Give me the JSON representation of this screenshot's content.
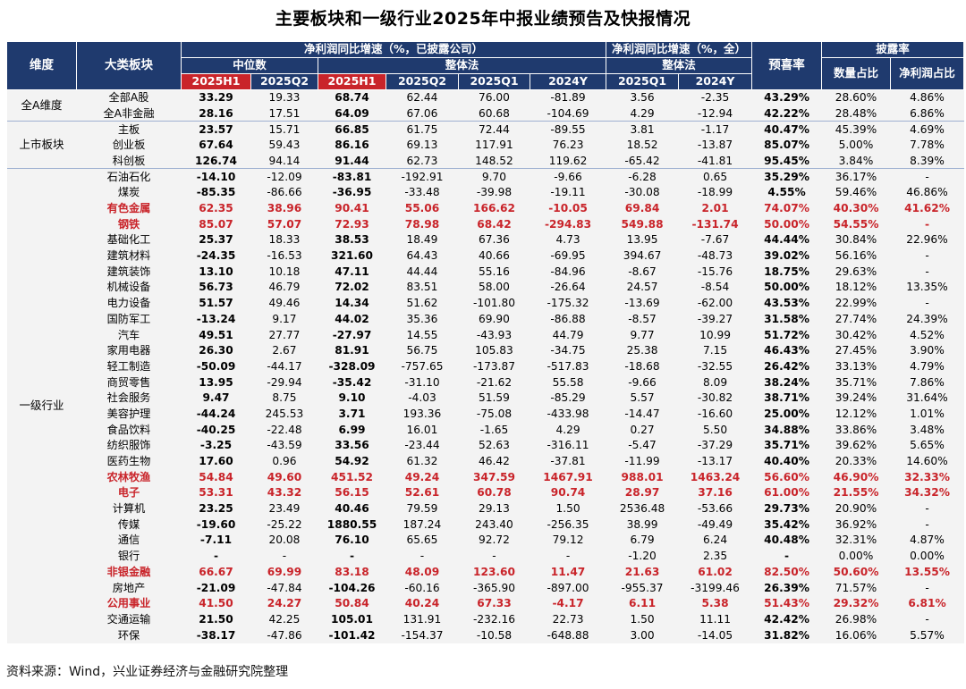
{
  "title": "主要板块和一级行业2025年中报业绩预告及快报情况",
  "source": "资料来源：Wind，兴业证券经济与金融研究院整理",
  "header": {
    "dim": "维度",
    "category": "大类板块",
    "group1": "净利润同比增速（%，已披露公司）",
    "group2": "净利润同比增速（%，全）",
    "forecast": "预喜率",
    "disclosure": "披露率",
    "median": "中位数",
    "overall1": "整体法",
    "overall2": "整体法",
    "count_ratio": "数量占比",
    "profit_ratio": "净利润占比",
    "cols": [
      "2025H1",
      "2025Q2",
      "2025H1",
      "2025Q2",
      "2025Q1",
      "2024Y",
      "2025Q1",
      "2024Y"
    ]
  },
  "groups": [
    {
      "label": "全A维度",
      "rows": [
        {
          "name": "全部A股",
          "v": [
            "33.29",
            "19.33",
            "68.74",
            "62.44",
            "76.00",
            "-81.89",
            "3.56",
            "-2.35",
            "43.29%",
            "28.60%",
            "4.86%"
          ],
          "hl": false
        },
        {
          "name": "全A非金融",
          "v": [
            "28.16",
            "17.51",
            "64.09",
            "67.06",
            "60.68",
            "-104.69",
            "4.29",
            "-12.94",
            "42.22%",
            "28.48%",
            "6.86%"
          ],
          "hl": false
        }
      ]
    },
    {
      "label": "上市板块",
      "rows": [
        {
          "name": "主板",
          "v": [
            "23.57",
            "15.71",
            "66.85",
            "61.75",
            "72.44",
            "-89.55",
            "3.81",
            "-1.17",
            "40.47%",
            "45.39%",
            "4.69%"
          ],
          "hl": false
        },
        {
          "name": "创业板",
          "v": [
            "67.64",
            "59.43",
            "86.16",
            "69.13",
            "117.91",
            "76.23",
            "18.52",
            "-13.87",
            "85.07%",
            "5.00%",
            "7.78%"
          ],
          "hl": false
        },
        {
          "name": "科创板",
          "v": [
            "126.74",
            "94.14",
            "91.44",
            "62.73",
            "148.52",
            "119.62",
            "-65.42",
            "-41.81",
            "95.45%",
            "3.84%",
            "8.39%"
          ],
          "hl": false
        }
      ]
    },
    {
      "label": "一级行业",
      "rows": [
        {
          "name": "石油石化",
          "v": [
            "-14.10",
            "-12.09",
            "-83.81",
            "-192.91",
            "9.70",
            "-9.66",
            "-6.28",
            "0.65",
            "35.29%",
            "36.17%",
            "-"
          ],
          "hl": false
        },
        {
          "name": "煤炭",
          "v": [
            "-85.35",
            "-86.66",
            "-36.95",
            "-33.48",
            "-39.98",
            "-19.11",
            "-30.08",
            "-18.99",
            "4.55%",
            "59.46%",
            "46.86%"
          ],
          "hl": false
        },
        {
          "name": "有色金属",
          "v": [
            "62.35",
            "38.96",
            "90.41",
            "55.06",
            "166.62",
            "-10.05",
            "69.84",
            "2.01",
            "74.07%",
            "40.30%",
            "41.62%"
          ],
          "hl": true
        },
        {
          "name": "钢铁",
          "v": [
            "85.07",
            "57.07",
            "72.93",
            "78.98",
            "68.42",
            "-294.83",
            "549.88",
            "-131.74",
            "50.00%",
            "54.55%",
            "-"
          ],
          "hl": true
        },
        {
          "name": "基础化工",
          "v": [
            "25.37",
            "18.33",
            "38.53",
            "18.49",
            "67.36",
            "4.73",
            "13.95",
            "-7.67",
            "44.44%",
            "30.84%",
            "22.96%"
          ],
          "hl": false
        },
        {
          "name": "建筑材料",
          "v": [
            "-24.35",
            "-16.53",
            "321.60",
            "64.43",
            "40.66",
            "-69.95",
            "394.67",
            "-48.73",
            "39.02%",
            "56.16%",
            "-"
          ],
          "hl": false
        },
        {
          "name": "建筑装饰",
          "v": [
            "13.10",
            "10.18",
            "47.11",
            "44.44",
            "55.16",
            "-84.96",
            "-8.67",
            "-15.76",
            "18.75%",
            "29.63%",
            "-"
          ],
          "hl": false
        },
        {
          "name": "机械设备",
          "v": [
            "56.73",
            "46.79",
            "72.02",
            "83.51",
            "58.00",
            "-26.64",
            "24.57",
            "-8.54",
            "50.00%",
            "18.12%",
            "13.35%"
          ],
          "hl": false
        },
        {
          "name": "电力设备",
          "v": [
            "51.57",
            "49.46",
            "14.34",
            "51.62",
            "-101.80",
            "-175.32",
            "-13.69",
            "-62.00",
            "43.53%",
            "22.99%",
            "-"
          ],
          "hl": false
        },
        {
          "name": "国防军工",
          "v": [
            "-13.24",
            "9.17",
            "44.02",
            "35.36",
            "69.90",
            "-86.88",
            "-8.57",
            "-39.27",
            "31.58%",
            "27.74%",
            "24.39%"
          ],
          "hl": false
        },
        {
          "name": "汽车",
          "v": [
            "49.51",
            "27.77",
            "-27.97",
            "14.55",
            "-43.93",
            "44.79",
            "9.77",
            "10.99",
            "51.72%",
            "30.42%",
            "4.52%"
          ],
          "hl": false
        },
        {
          "name": "家用电器",
          "v": [
            "26.30",
            "2.67",
            "81.91",
            "56.75",
            "105.83",
            "-34.75",
            "25.38",
            "7.15",
            "46.43%",
            "27.45%",
            "3.90%"
          ],
          "hl": false
        },
        {
          "name": "轻工制造",
          "v": [
            "-50.09",
            "-44.17",
            "-328.09",
            "-757.65",
            "-173.87",
            "-517.83",
            "-18.68",
            "-32.55",
            "26.42%",
            "33.13%",
            "4.79%"
          ],
          "hl": false
        },
        {
          "name": "商贸零售",
          "v": [
            "13.95",
            "-29.94",
            "-35.42",
            "-31.10",
            "-21.62",
            "55.58",
            "-9.66",
            "8.09",
            "38.24%",
            "35.71%",
            "7.86%"
          ],
          "hl": false
        },
        {
          "name": "社会服务",
          "v": [
            "9.47",
            "8.75",
            "9.10",
            "-4.03",
            "51.59",
            "-85.29",
            "5.57",
            "-30.82",
            "38.71%",
            "39.24%",
            "31.64%"
          ],
          "hl": false
        },
        {
          "name": "美容护理",
          "v": [
            "-44.24",
            "245.53",
            "3.71",
            "193.36",
            "-75.08",
            "-433.98",
            "-14.47",
            "-16.60",
            "25.00%",
            "12.12%",
            "1.01%"
          ],
          "hl": false
        },
        {
          "name": "食品饮料",
          "v": [
            "-40.25",
            "-22.48",
            "6.99",
            "16.01",
            "-1.65",
            "4.29",
            "0.27",
            "5.50",
            "34.88%",
            "33.86%",
            "3.48%"
          ],
          "hl": false
        },
        {
          "name": "纺织服饰",
          "v": [
            "-3.25",
            "-43.59",
            "33.56",
            "-23.44",
            "52.63",
            "-316.11",
            "-5.47",
            "-37.29",
            "35.71%",
            "39.62%",
            "5.65%"
          ],
          "hl": false
        },
        {
          "name": "医药生物",
          "v": [
            "17.60",
            "0.96",
            "54.92",
            "61.32",
            "46.42",
            "-37.81",
            "-11.99",
            "-13.17",
            "40.40%",
            "20.33%",
            "14.60%"
          ],
          "hl": false
        },
        {
          "name": "农林牧渔",
          "v": [
            "54.84",
            "49.60",
            "451.52",
            "49.24",
            "347.59",
            "1467.91",
            "988.01",
            "1463.24",
            "56.60%",
            "46.90%",
            "32.33%"
          ],
          "hl": true
        },
        {
          "name": "电子",
          "v": [
            "53.31",
            "43.32",
            "56.15",
            "52.61",
            "60.78",
            "90.74",
            "28.97",
            "37.16",
            "61.00%",
            "21.55%",
            "34.32%"
          ],
          "hl": true
        },
        {
          "name": "计算机",
          "v": [
            "23.25",
            "23.49",
            "40.46",
            "79.59",
            "29.13",
            "1.50",
            "2536.48",
            "-53.66",
            "29.73%",
            "20.90%",
            "-"
          ],
          "hl": false
        },
        {
          "name": "传媒",
          "v": [
            "-19.60",
            "-25.22",
            "1880.55",
            "187.24",
            "243.40",
            "-256.35",
            "38.99",
            "-49.49",
            "35.42%",
            "36.92%",
            "-"
          ],
          "hl": false
        },
        {
          "name": "通信",
          "v": [
            "-7.11",
            "20.08",
            "76.10",
            "65.65",
            "92.72",
            "79.12",
            "6.79",
            "6.24",
            "40.48%",
            "32.31%",
            "4.87%"
          ],
          "hl": false
        },
        {
          "name": "银行",
          "v": [
            "-",
            "-",
            "-",
            "-",
            "-",
            "-",
            "-1.20",
            "2.35",
            "-",
            "0.00%",
            "0.00%"
          ],
          "hl": false
        },
        {
          "name": "非银金融",
          "v": [
            "66.67",
            "69.99",
            "83.18",
            "48.09",
            "123.60",
            "11.47",
            "21.63",
            "61.02",
            "82.50%",
            "50.60%",
            "13.55%"
          ],
          "hl": true
        },
        {
          "name": "房地产",
          "v": [
            "-21.09",
            "-47.84",
            "-104.26",
            "-60.16",
            "-365.90",
            "-897.00",
            "-955.37",
            "-3199.46",
            "26.39%",
            "71.57%",
            "-"
          ],
          "hl": false
        },
        {
          "name": "公用事业",
          "v": [
            "41.50",
            "24.27",
            "50.84",
            "40.24",
            "67.33",
            "-4.17",
            "6.11",
            "5.38",
            "51.43%",
            "29.32%",
            "6.81%"
          ],
          "hl": true
        },
        {
          "name": "交通运输",
          "v": [
            "21.50",
            "42.25",
            "105.01",
            "131.91",
            "-232.16",
            "22.73",
            "1.50",
            "11.11",
            "42.42%",
            "26.98%",
            "-"
          ],
          "hl": false
        },
        {
          "name": "环保",
          "v": [
            "-38.17",
            "-47.86",
            "-101.42",
            "-154.37",
            "-10.58",
            "-648.88",
            "3.00",
            "-14.05",
            "31.82%",
            "16.06%",
            "5.57%"
          ],
          "hl": false
        }
      ]
    }
  ]
}
